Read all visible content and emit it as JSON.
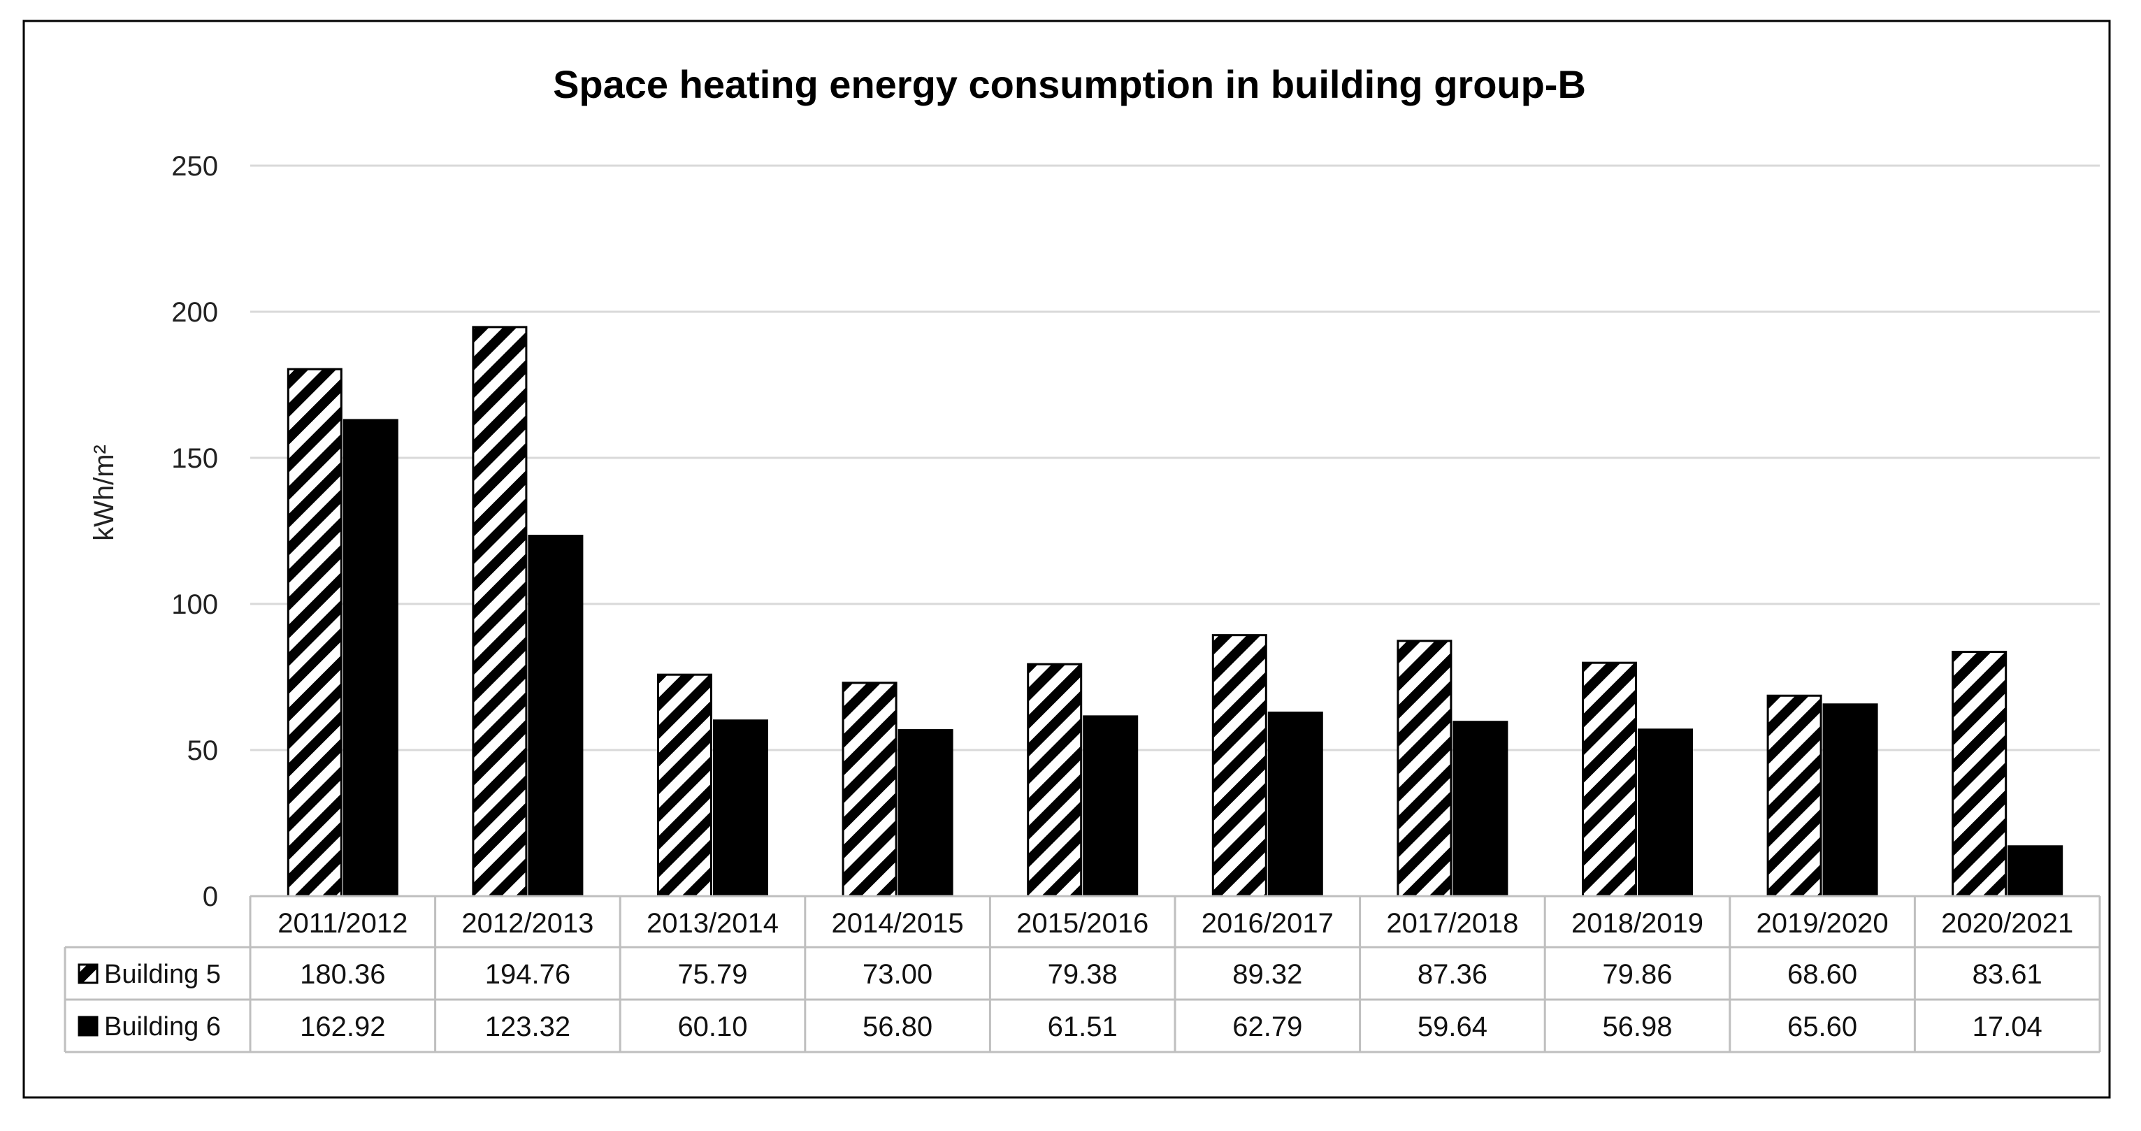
{
  "chart_data": {
    "type": "bar",
    "title": "Space heating energy consumption in building group-B",
    "ylabel": "kWh/m²",
    "xlabel": "",
    "ylim": [
      0,
      250
    ],
    "yticks": [
      0,
      50,
      100,
      150,
      200,
      250
    ],
    "grid": true,
    "legend": "data-table",
    "categories": [
      "2011/2012",
      "2012/2013",
      "2013/2014",
      "2014/2015",
      "2015/2016",
      "2016/2017",
      "2017/2018",
      "2018/2019",
      "2019/2020",
      "2020/2021"
    ],
    "series": [
      {
        "name": "Building 5",
        "values": [
          180.36,
          194.76,
          75.79,
          73.0,
          79.38,
          89.32,
          87.36,
          79.86,
          68.6,
          83.61
        ],
        "labels": [
          "180.36",
          "194.76",
          "75.79",
          "73.00",
          "79.38",
          "89.32",
          "87.36",
          "79.86",
          "68.60",
          "83.61"
        ],
        "fill": "hatched"
      },
      {
        "name": "Building 6",
        "values": [
          162.92,
          123.32,
          60.1,
          56.8,
          61.51,
          62.79,
          59.64,
          56.98,
          65.6,
          17.04
        ],
        "labels": [
          "162.92",
          "123.32",
          "60.10",
          "56.80",
          "61.51",
          "62.79",
          "59.64",
          "56.98",
          "65.60",
          "17.04"
        ],
        "fill": "#000000"
      }
    ],
    "colors": {
      "gridline": "#d9d9d9",
      "border": "#000000",
      "table_line": "#bfbfbf"
    }
  }
}
